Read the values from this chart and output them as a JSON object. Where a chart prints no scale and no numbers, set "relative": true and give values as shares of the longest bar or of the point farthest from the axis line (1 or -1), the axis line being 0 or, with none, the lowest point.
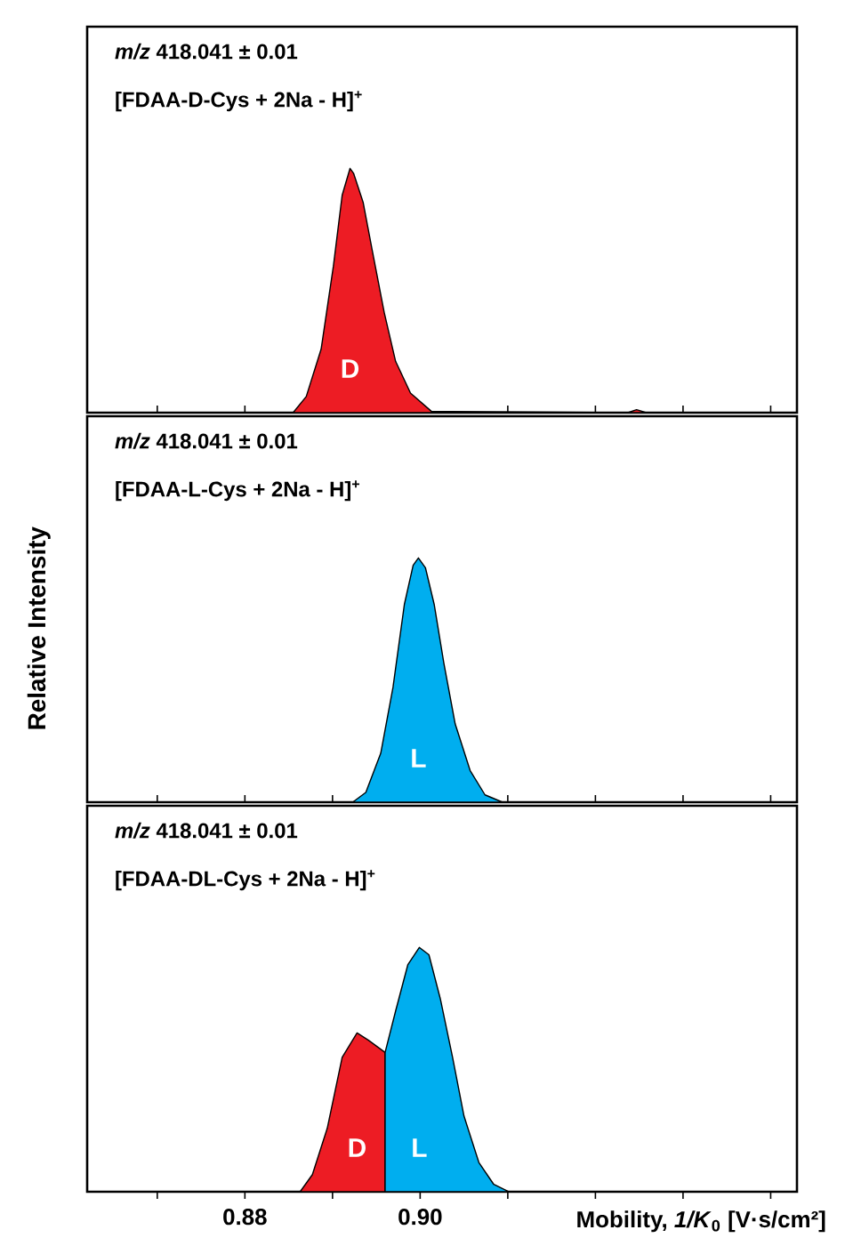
{
  "chart_data": [
    {
      "type": "area",
      "relative": true,
      "xlim": [
        0.862,
        0.943
      ],
      "tick_labels": false,
      "xticks": [
        {
          "value": 0.87,
          "label": null
        },
        {
          "value": 0.88,
          "label": null
        },
        {
          "value": 0.89,
          "label": null
        },
        {
          "value": 0.9,
          "label": null
        },
        {
          "value": 0.91,
          "label": null
        },
        {
          "value": 0.92,
          "label": null
        },
        {
          "value": 0.93,
          "label": null
        },
        {
          "value": 0.94,
          "label": null
        }
      ],
      "annotations": [
        "*m/z* 418.041 ± 0.01",
        "[FDAA-D-Cys + 2Na - H]$^{+}$"
      ],
      "series": [
        {
          "name": "D",
          "color": "#ed1c24",
          "x": [
            0.862,
            0.8855,
            0.887,
            0.8887,
            0.8901,
            0.8911,
            0.892,
            0.8924,
            0.8935,
            0.8945,
            0.8959,
            0.8972,
            0.8989,
            0.9013,
            0.9237,
            0.9247,
            0.9258,
            0.943
          ],
          "values": [
            0,
            0,
            0.066,
            0.26,
            0.6,
            0.89,
            1,
            0.98,
            0.86,
            0.67,
            0.41,
            0.21,
            0.08,
            0.005,
            0,
            0.012,
            0,
            0
          ]
        }
      ]
    },
    {
      "type": "area",
      "relative": true,
      "xlim": [
        0.862,
        0.943
      ],
      "tick_labels": false,
      "ylabel": "Relative Intensity",
      "xticks": [
        {
          "value": 0.87,
          "label": null
        },
        {
          "value": 0.88,
          "label": null
        },
        {
          "value": 0.89,
          "label": null
        },
        {
          "value": 0.9,
          "label": null
        },
        {
          "value": 0.91,
          "label": null
        },
        {
          "value": 0.92,
          "label": null
        },
        {
          "value": 0.93,
          "label": null
        },
        {
          "value": 0.94,
          "label": null
        }
      ],
      "annotations": [
        "*m/z* 418.041 ± 0.01",
        "[FDAA-L-Cys + 2Na - H]$^{+}$"
      ],
      "series": [
        {
          "name": "L",
          "color": "#00aeef",
          "x": [
            0.862,
            0.8923,
            0.8938,
            0.8955,
            0.8969,
            0.8982,
            0.8992,
            0.8998,
            0.9006,
            0.9016,
            0.9027,
            0.904,
            0.9057,
            0.9074,
            0.9094,
            0.943
          ],
          "values": [
            0,
            0,
            0.04,
            0.2,
            0.47,
            0.81,
            0.97,
            1,
            0.96,
            0.81,
            0.57,
            0.32,
            0.13,
            0.03,
            0,
            0
          ]
        }
      ]
    },
    {
      "type": "area",
      "relative": true,
      "xlim": [
        0.862,
        0.943
      ],
      "tick_labels": "x",
      "xlabel": "Mobility, *1/K*$_{0}$ [V·s/cm²]",
      "xticks": [
        {
          "value": 0.87,
          "label": null
        },
        0.88,
        {
          "value": 0.89,
          "label": null
        },
        {
          "value": 0.9,
          "label": "0.90"
        },
        {
          "value": 0.91,
          "label": null
        },
        {
          "value": 0.92,
          "label": null
        },
        {
          "value": 0.93,
          "label": null
        },
        {
          "value": 0.94,
          "label": null
        }
      ],
      "annotations": [
        "*m/z* 418.041 ± 0.01",
        "[FDAA-DL-Cys + 2Na - H]$^{+}$"
      ],
      "series": [
        {
          "name": "D",
          "color": "#ed1c24",
          "x": [
            0.862,
            0.8863,
            0.8877,
            0.8894,
            0.8911,
            0.8928,
            0.8941,
            0.896
          ],
          "values": [
            0,
            0,
            0.07,
            0.26,
            0.55,
            0.65,
            0.62,
            0.57
          ]
        },
        {
          "name": "L",
          "color": "#00aeef",
          "x": [
            0.896,
            0.8972,
            0.8986,
            0.8999,
            0.901,
            0.9023,
            0.9037,
            0.905,
            0.9067,
            0.9084,
            0.9101,
            0.943
          ],
          "values": [
            0.57,
            0.74,
            0.93,
            1,
            0.97,
            0.79,
            0.55,
            0.31,
            0.12,
            0.03,
            0,
            0
          ]
        }
      ]
    }
  ]
}
